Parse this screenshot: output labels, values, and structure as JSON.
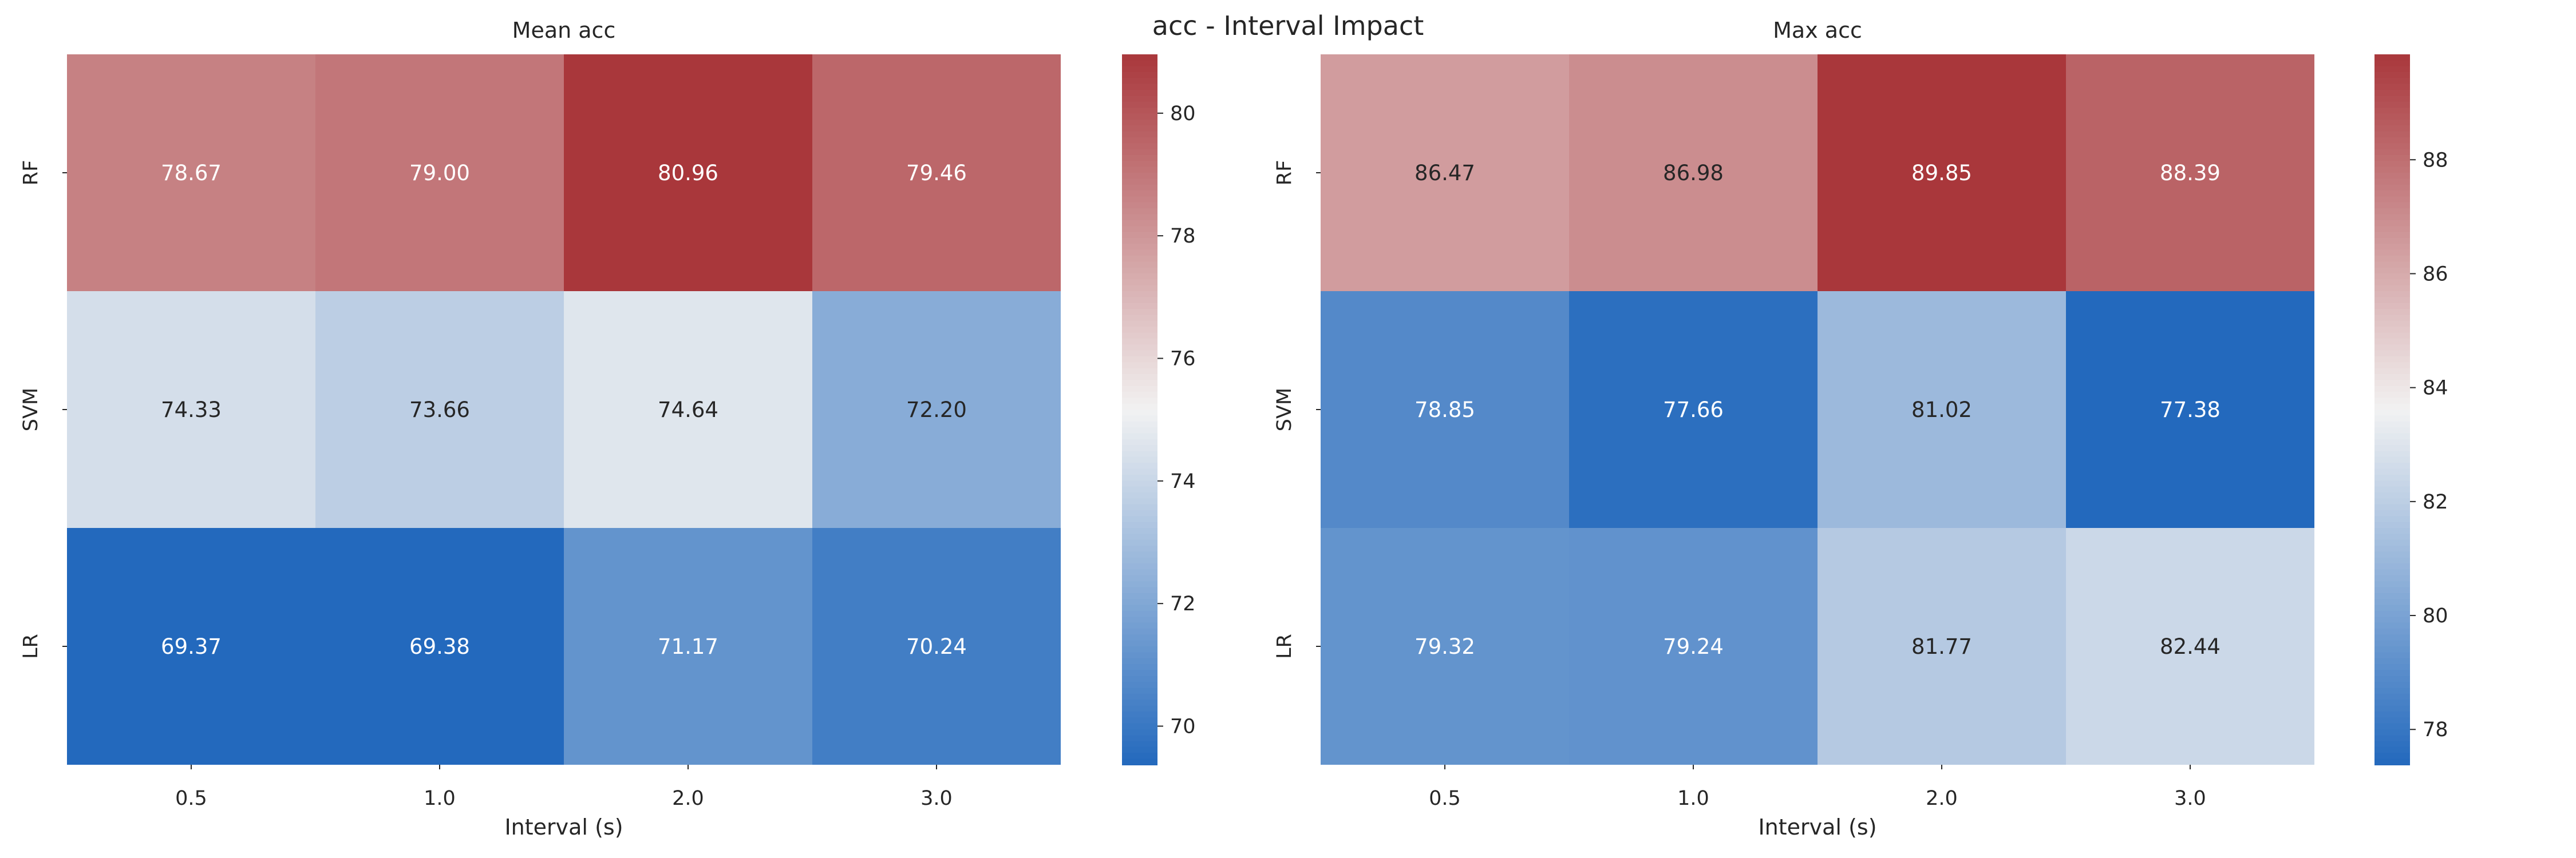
{
  "suptitle": "acc - Interval Impact",
  "chart_data": [
    {
      "type": "heatmap",
      "title": "Mean acc",
      "xlabel": "Interval (s)",
      "ylabel": "",
      "x": [
        "0.5",
        "1.0",
        "2.0",
        "3.0"
      ],
      "y": [
        "RF",
        "SVM",
        "LR"
      ],
      "values": [
        [
          78.67,
          79.0,
          80.96,
          79.46
        ],
        [
          74.33,
          73.66,
          74.64,
          72.2
        ],
        [
          69.37,
          69.38,
          71.17,
          70.24
        ]
      ],
      "cell_labels": [
        [
          "78.67",
          "79.00",
          "80.96",
          "79.46"
        ],
        [
          "74.33",
          "73.66",
          "74.64",
          "72.20"
        ],
        [
          "69.37",
          "69.38",
          "71.17",
          "70.24"
        ]
      ],
      "colormap": "vlag",
      "colorbar": {
        "range": [
          69.37,
          80.96
        ],
        "ticks": [
          70,
          72,
          74,
          76,
          78,
          80
        ],
        "tick_labels": [
          "70",
          "72",
          "74",
          "76",
          "78",
          "80"
        ]
      }
    },
    {
      "type": "heatmap",
      "title": "Max acc",
      "xlabel": "Interval (s)",
      "ylabel": "",
      "x": [
        "0.5",
        "1.0",
        "2.0",
        "3.0"
      ],
      "y": [
        "RF",
        "SVM",
        "LR"
      ],
      "values": [
        [
          86.47,
          86.98,
          89.85,
          88.39
        ],
        [
          78.85,
          77.66,
          81.02,
          77.38
        ],
        [
          79.32,
          79.24,
          81.77,
          82.44
        ]
      ],
      "cell_labels": [
        [
          "86.47",
          "86.98",
          "89.85",
          "88.39"
        ],
        [
          "78.85",
          "77.66",
          "81.02",
          "77.38"
        ],
        [
          "79.32",
          "79.24",
          "81.77",
          "82.44"
        ]
      ],
      "colormap": "vlag",
      "colorbar": {
        "range": [
          77.38,
          89.85
        ],
        "ticks": [
          78,
          80,
          82,
          84,
          86,
          88
        ],
        "tick_labels": [
          "78",
          "80",
          "82",
          "84",
          "86",
          "88"
        ]
      }
    }
  ],
  "colors": {
    "low": "#2369bd",
    "mid": "#f2f2f2",
    "high": "#a9373b",
    "dark_text": "#262626",
    "light_text": "#ffffff"
  }
}
